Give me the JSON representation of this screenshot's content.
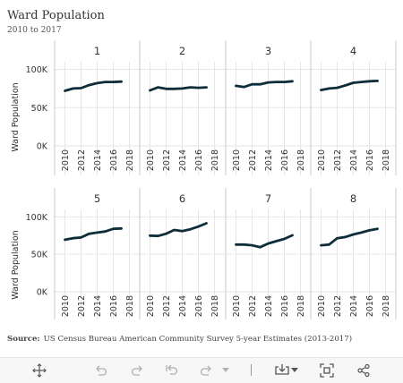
{
  "title": "Ward Population",
  "subtitle": "2010 to 2017",
  "source": {
    "label": "Source:",
    "text": "US Census Bureau American Community Survey 5-year Estimates (2013-2017)"
  },
  "colors": {
    "line": "#0d2d3a",
    "grid": "#e6e6e6",
    "axis": "#c8c8c8",
    "text": "#333333",
    "toolbar_icon": "#555555",
    "toolbar_icon_disabled": "#b0b0b0"
  },
  "toolbar": {
    "icons": [
      "move-icon",
      "undo-icon",
      "redo-icon",
      "reset-icon",
      "refresh-icon",
      "chevron-down-icon",
      "download-icon",
      "chevron-down-icon",
      "fullscreen-icon",
      "share-icon"
    ]
  },
  "chart_data": {
    "type": "line",
    "facet_by": "Ward",
    "ylabel": "Ward Population",
    "ylim": [
      0,
      110000
    ],
    "xlim": [
      2009.5,
      2018.5
    ],
    "y_ticks": [
      0,
      50000,
      100000
    ],
    "y_tick_labels": [
      "0K",
      "50K",
      "100K"
    ],
    "x_ticks": [
      2010,
      2012,
      2014,
      2016,
      2018
    ],
    "x_tick_labels": [
      "2010",
      "2012",
      "2014",
      "2016",
      "2018"
    ],
    "x": [
      2010,
      2011,
      2012,
      2013,
      2014,
      2015,
      2016,
      2017
    ],
    "grid": true,
    "series": [
      {
        "name": "1",
        "values": [
          72000,
          75000,
          75500,
          79500,
          82000,
          83500,
          83500,
          84000
        ]
      },
      {
        "name": "2",
        "values": [
          72500,
          76500,
          74500,
          74500,
          75000,
          76500,
          76000,
          76500
        ]
      },
      {
        "name": "3",
        "values": [
          78500,
          77000,
          80500,
          80500,
          83000,
          83500,
          83500,
          84500
        ]
      },
      {
        "name": "4",
        "values": [
          73000,
          75000,
          76000,
          79000,
          82500,
          83500,
          84500,
          85000
        ]
      },
      {
        "name": "5",
        "values": [
          69500,
          71500,
          72500,
          77500,
          79000,
          80500,
          84000,
          84500
        ]
      },
      {
        "name": "6",
        "values": [
          75000,
          74500,
          77500,
          82500,
          81000,
          83500,
          87000,
          91500
        ]
      },
      {
        "name": "7",
        "values": [
          63000,
          63000,
          62000,
          59500,
          64500,
          67500,
          70500,
          75500
        ]
      },
      {
        "name": "8",
        "values": [
          62000,
          63000,
          71500,
          73000,
          76500,
          79000,
          82000,
          84000
        ]
      }
    ]
  }
}
